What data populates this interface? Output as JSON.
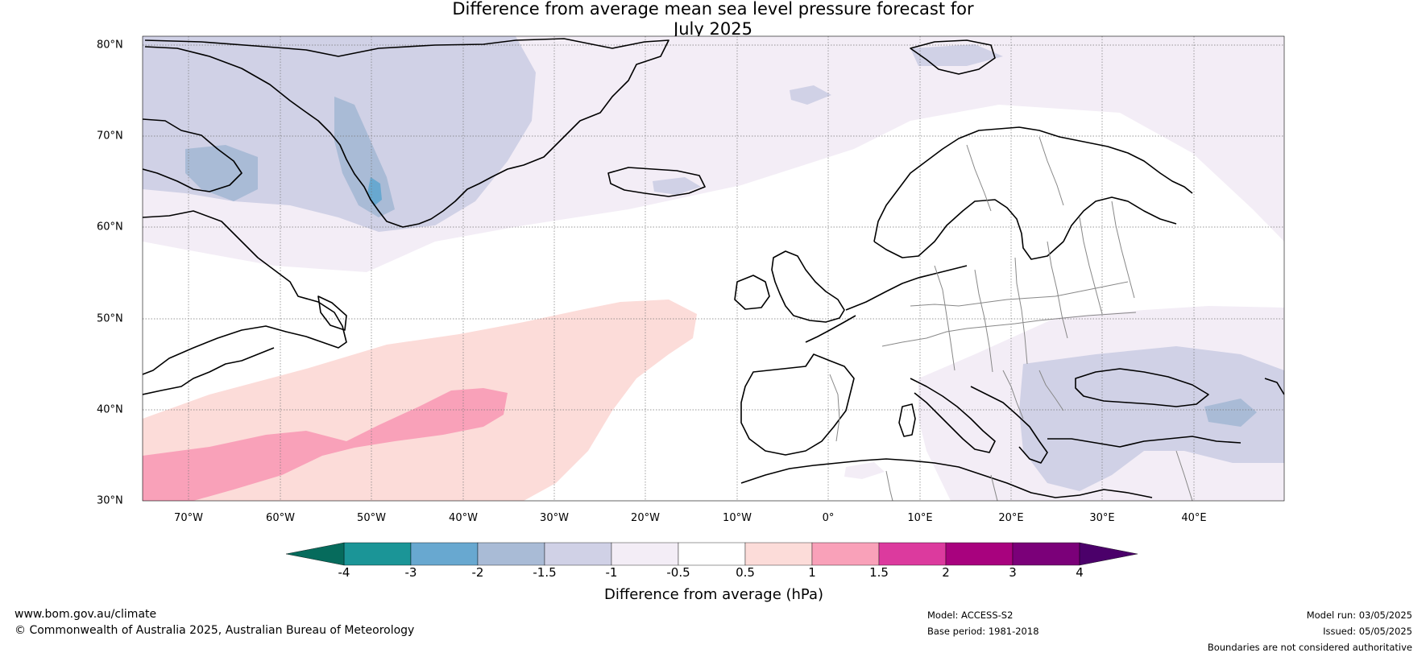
{
  "title": {
    "line1": "Difference from average mean sea level pressure forecast for",
    "line2": "July 2025"
  },
  "map": {
    "lat_labels": [
      "80°N",
      "70°N",
      "60°N",
      "50°N",
      "40°N",
      "30°N"
    ],
    "lon_labels": [
      "70°W",
      "60°W",
      "50°W",
      "40°W",
      "30°W",
      "20°W",
      "10°W",
      "0°",
      "10°E",
      "20°E",
      "30°E",
      "40°E"
    ],
    "colorbar": {
      "tick_labels": [
        "-4",
        "-3",
        "-2",
        "-1.5",
        "-1",
        "-0.5",
        "0.5",
        "1",
        "1.5",
        "2",
        "3",
        "4"
      ],
      "colors": [
        "#04786a",
        "#1b9597",
        "#68a8d0",
        "#a9bbd6",
        "#d0d1e6",
        "#f3edf6",
        "#ffffff",
        "#fcdcd9",
        "#f9a1b9",
        "#dc3a9e",
        "#a8027e",
        "#7b0079"
      ],
      "low_extend_color": "#066b5c",
      "high_extend_color": "#4b006a",
      "title": "Difference from average (hPa)"
    }
  },
  "footer": {
    "website": "www.bom.gov.au/climate",
    "copyright": "© Commonwealth of Australia 2025, Australian Bureau of Meteorology",
    "model": "Model: ACCESS-S2",
    "base_period": "Base period: 1981-2018",
    "model_run": "Model run: 03/05/2025",
    "issued": "Issued: 05/05/2025",
    "disclaimer": "Boundaries are not considered authoritative"
  }
}
